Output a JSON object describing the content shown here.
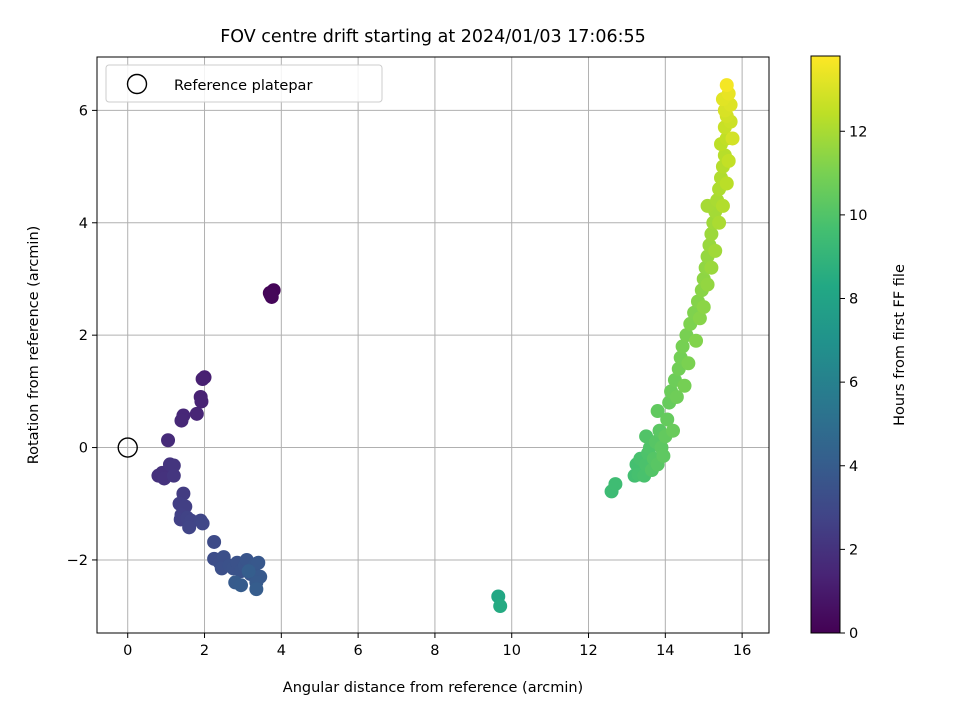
{
  "chart_data": {
    "type": "scatter",
    "title": "FOV centre drift starting at 2024/01/03 17:06:55",
    "xlabel": "Angular distance from reference (arcmin)",
    "ylabel": "Rotation from reference (arcmin)",
    "xlim": [
      -0.8,
      16.7
    ],
    "ylim": [
      -3.3,
      6.95
    ],
    "xticks": [
      0,
      2,
      4,
      6,
      8,
      10,
      12,
      14,
      16
    ],
    "yticks": [
      -2,
      0,
      2,
      4,
      6
    ],
    "grid": true,
    "legend": {
      "position": "top-left",
      "entries": [
        {
          "label": "Reference platepar",
          "marker": "open-circle"
        }
      ]
    },
    "reference_point": {
      "x": 0,
      "y": 0
    },
    "colorbar": {
      "label": "Hours from first FF file",
      "min": 0,
      "max": 13.8,
      "ticks": [
        0,
        2,
        4,
        6,
        8,
        10,
        12
      ],
      "colormap": "viridis"
    },
    "points": [
      {
        "x": 3.7,
        "y": 2.75,
        "t": 0.1
      },
      {
        "x": 3.8,
        "y": 2.8,
        "t": 0.15
      },
      {
        "x": 3.75,
        "y": 2.68,
        "t": 0.2
      },
      {
        "x": 3.72,
        "y": 2.72,
        "t": 0.22
      },
      {
        "x": 2.0,
        "y": 1.25,
        "t": 1.2
      },
      {
        "x": 1.95,
        "y": 1.22,
        "t": 1.25
      },
      {
        "x": 1.9,
        "y": 0.9,
        "t": 1.3
      },
      {
        "x": 1.92,
        "y": 0.82,
        "t": 1.35
      },
      {
        "x": 1.8,
        "y": 0.6,
        "t": 1.45
      },
      {
        "x": 1.45,
        "y": 0.57,
        "t": 1.5
      },
      {
        "x": 1.4,
        "y": 0.48,
        "t": 1.55
      },
      {
        "x": 1.05,
        "y": 0.13,
        "t": 1.7
      },
      {
        "x": 0.8,
        "y": -0.5,
        "t": 1.9
      },
      {
        "x": 0.9,
        "y": -0.45,
        "t": 1.95
      },
      {
        "x": 0.95,
        "y": -0.55,
        "t": 2.0
      },
      {
        "x": 1.1,
        "y": -0.3,
        "t": 2.05
      },
      {
        "x": 1.2,
        "y": -0.32,
        "t": 2.1
      },
      {
        "x": 1.2,
        "y": -0.5,
        "t": 2.15
      },
      {
        "x": 1.45,
        "y": -0.82,
        "t": 2.4
      },
      {
        "x": 1.35,
        "y": -1.0,
        "t": 2.5
      },
      {
        "x": 1.5,
        "y": -1.05,
        "t": 2.55
      },
      {
        "x": 1.4,
        "y": -1.2,
        "t": 2.6
      },
      {
        "x": 1.38,
        "y": -1.28,
        "t": 2.65
      },
      {
        "x": 1.55,
        "y": -1.25,
        "t": 2.7
      },
      {
        "x": 1.65,
        "y": -1.3,
        "t": 2.75
      },
      {
        "x": 1.6,
        "y": -1.42,
        "t": 2.8
      },
      {
        "x": 1.9,
        "y": -1.3,
        "t": 2.85
      },
      {
        "x": 1.95,
        "y": -1.35,
        "t": 2.9
      },
      {
        "x": 2.25,
        "y": -1.68,
        "t": 3.1
      },
      {
        "x": 2.25,
        "y": -1.98,
        "t": 3.2
      },
      {
        "x": 2.4,
        "y": -2.05,
        "t": 3.25
      },
      {
        "x": 2.5,
        "y": -1.95,
        "t": 3.3
      },
      {
        "x": 2.45,
        "y": -2.15,
        "t": 3.35
      },
      {
        "x": 2.65,
        "y": -2.1,
        "t": 3.4
      },
      {
        "x": 2.75,
        "y": -2.15,
        "t": 3.45
      },
      {
        "x": 2.85,
        "y": -2.05,
        "t": 3.5
      },
      {
        "x": 2.95,
        "y": -2.2,
        "t": 3.55
      },
      {
        "x": 3.05,
        "y": -2.1,
        "t": 3.6
      },
      {
        "x": 3.1,
        "y": -2.0,
        "t": 3.65
      },
      {
        "x": 3.2,
        "y": -2.25,
        "t": 3.7
      },
      {
        "x": 3.3,
        "y": -2.1,
        "t": 3.75
      },
      {
        "x": 3.4,
        "y": -2.05,
        "t": 3.8
      },
      {
        "x": 3.45,
        "y": -2.3,
        "t": 3.85
      },
      {
        "x": 3.35,
        "y": -2.4,
        "t": 3.9
      },
      {
        "x": 2.8,
        "y": -2.4,
        "t": 3.95
      },
      {
        "x": 2.95,
        "y": -2.45,
        "t": 4.0
      },
      {
        "x": 3.35,
        "y": -2.52,
        "t": 4.05
      },
      {
        "x": 3.15,
        "y": -2.2,
        "t": 4.1
      },
      {
        "x": 9.65,
        "y": -2.65,
        "t": 8.2
      },
      {
        "x": 9.7,
        "y": -2.82,
        "t": 8.4
      },
      {
        "x": 12.6,
        "y": -0.78,
        "t": 9.4
      },
      {
        "x": 12.7,
        "y": -0.65,
        "t": 9.45
      },
      {
        "x": 13.2,
        "y": -0.5,
        "t": 9.6
      },
      {
        "x": 13.25,
        "y": -0.3,
        "t": 9.65
      },
      {
        "x": 13.3,
        "y": -0.48,
        "t": 9.7
      },
      {
        "x": 13.35,
        "y": -0.2,
        "t": 9.75
      },
      {
        "x": 13.45,
        "y": -0.5,
        "t": 9.8
      },
      {
        "x": 13.5,
        "y": -0.3,
        "t": 9.85
      },
      {
        "x": 13.55,
        "y": -0.1,
        "t": 9.9
      },
      {
        "x": 13.6,
        "y": 0.0,
        "t": 9.95
      },
      {
        "x": 13.5,
        "y": 0.2,
        "t": 10.0
      },
      {
        "x": 13.65,
        "y": -0.4,
        "t": 10.05
      },
      {
        "x": 13.7,
        "y": -0.2,
        "t": 10.1
      },
      {
        "x": 13.75,
        "y": 0.1,
        "t": 10.15
      },
      {
        "x": 13.8,
        "y": -0.3,
        "t": 10.2
      },
      {
        "x": 13.85,
        "y": 0.3,
        "t": 10.25
      },
      {
        "x": 13.9,
        "y": 0.0,
        "t": 10.3
      },
      {
        "x": 13.95,
        "y": -0.15,
        "t": 10.35
      },
      {
        "x": 13.8,
        "y": 0.65,
        "t": 10.4
      },
      {
        "x": 14.0,
        "y": 0.2,
        "t": 10.45
      },
      {
        "x": 14.05,
        "y": 0.5,
        "t": 10.5
      },
      {
        "x": 14.1,
        "y": 0.8,
        "t": 10.55
      },
      {
        "x": 14.2,
        "y": 0.3,
        "t": 10.6
      },
      {
        "x": 14.15,
        "y": 1.0,
        "t": 10.65
      },
      {
        "x": 14.25,
        "y": 1.2,
        "t": 10.7
      },
      {
        "x": 14.3,
        "y": 0.9,
        "t": 10.75
      },
      {
        "x": 14.35,
        "y": 1.4,
        "t": 10.8
      },
      {
        "x": 14.4,
        "y": 1.6,
        "t": 10.85
      },
      {
        "x": 14.5,
        "y": 1.1,
        "t": 10.9
      },
      {
        "x": 14.45,
        "y": 1.8,
        "t": 10.95
      },
      {
        "x": 14.55,
        "y": 2.0,
        "t": 11.0
      },
      {
        "x": 14.6,
        "y": 1.5,
        "t": 11.05
      },
      {
        "x": 14.65,
        "y": 2.2,
        "t": 11.1
      },
      {
        "x": 14.75,
        "y": 2.4,
        "t": 11.15
      },
      {
        "x": 14.8,
        "y": 1.9,
        "t": 11.2
      },
      {
        "x": 14.85,
        "y": 2.6,
        "t": 11.25
      },
      {
        "x": 14.9,
        "y": 2.3,
        "t": 11.3
      },
      {
        "x": 14.95,
        "y": 2.8,
        "t": 11.35
      },
      {
        "x": 15.0,
        "y": 2.5,
        "t": 11.4
      },
      {
        "x": 15.0,
        "y": 3.0,
        "t": 11.45
      },
      {
        "x": 15.05,
        "y": 3.2,
        "t": 11.5
      },
      {
        "x": 15.1,
        "y": 2.9,
        "t": 11.55
      },
      {
        "x": 15.1,
        "y": 3.4,
        "t": 11.6
      },
      {
        "x": 15.15,
        "y": 3.6,
        "t": 11.65
      },
      {
        "x": 15.2,
        "y": 3.2,
        "t": 11.7
      },
      {
        "x": 15.2,
        "y": 3.8,
        "t": 11.75
      },
      {
        "x": 15.25,
        "y": 4.0,
        "t": 11.8
      },
      {
        "x": 15.3,
        "y": 3.5,
        "t": 11.85
      },
      {
        "x": 15.3,
        "y": 4.2,
        "t": 11.9
      },
      {
        "x": 15.1,
        "y": 4.3,
        "t": 11.95
      },
      {
        "x": 15.35,
        "y": 4.4,
        "t": 12.0
      },
      {
        "x": 15.4,
        "y": 4.0,
        "t": 12.05
      },
      {
        "x": 15.4,
        "y": 4.6,
        "t": 12.1
      },
      {
        "x": 15.45,
        "y": 4.8,
        "t": 12.15
      },
      {
        "x": 15.5,
        "y": 4.3,
        "t": 12.2
      },
      {
        "x": 15.5,
        "y": 5.0,
        "t": 12.25
      },
      {
        "x": 15.55,
        "y": 5.2,
        "t": 12.3
      },
      {
        "x": 15.6,
        "y": 4.7,
        "t": 12.35
      },
      {
        "x": 15.45,
        "y": 5.4,
        "t": 12.4
      },
      {
        "x": 15.6,
        "y": 5.5,
        "t": 12.5
      },
      {
        "x": 15.65,
        "y": 5.1,
        "t": 12.55
      },
      {
        "x": 15.55,
        "y": 5.7,
        "t": 12.65
      },
      {
        "x": 15.7,
        "y": 5.8,
        "t": 12.75
      },
      {
        "x": 15.6,
        "y": 5.9,
        "t": 12.85
      },
      {
        "x": 15.75,
        "y": 5.5,
        "t": 12.9
      },
      {
        "x": 15.55,
        "y": 6.0,
        "t": 13.0
      },
      {
        "x": 15.7,
        "y": 6.1,
        "t": 13.1
      },
      {
        "x": 15.5,
        "y": 6.2,
        "t": 13.2
      },
      {
        "x": 15.65,
        "y": 6.3,
        "t": 13.35
      },
      {
        "x": 15.6,
        "y": 6.45,
        "t": 13.6
      }
    ]
  }
}
